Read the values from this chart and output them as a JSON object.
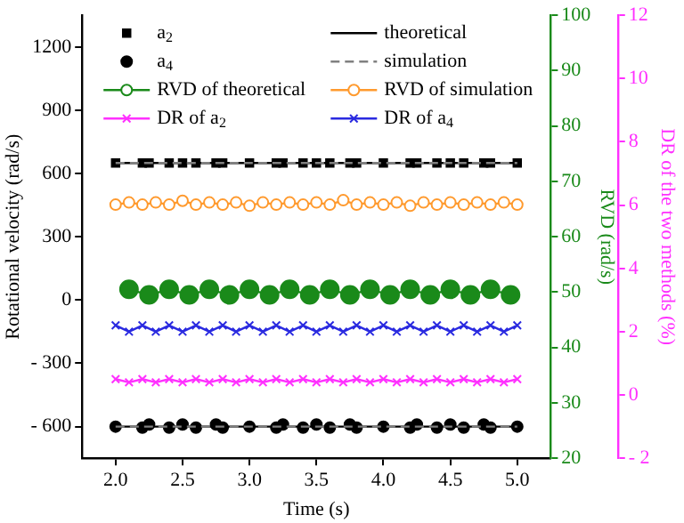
{
  "chart_data": {
    "type": "line",
    "xlabel": "Time (s)",
    "ylabel": "Rotational velocity (rad/s)",
    "y2label": "RVD (rad/s)",
    "y3label": "DR of the two methods (%)",
    "xlim": [
      1.75,
      5.25
    ],
    "xticks": [
      {
        "value": 2,
        "label": "2.0"
      },
      {
        "value": 2.5,
        "label": "2.5"
      },
      {
        "value": 3,
        "label": "3.0"
      },
      {
        "value": 3.5,
        "label": "3.5"
      },
      {
        "value": 4,
        "label": "4.0"
      },
      {
        "value": 4.5,
        "label": "4.5"
      },
      {
        "value": 5,
        "label": "5.0"
      }
    ],
    "ylim": [
      -750,
      1350
    ],
    "yticks": [
      {
        "value": -600,
        "label": "- 600"
      },
      {
        "value": -300,
        "label": "- 300"
      },
      0,
      300,
      600,
      900,
      1200
    ],
    "y2lim": [
      20,
      100
    ],
    "y2ticks": [
      20,
      30,
      40,
      50,
      60,
      70,
      80,
      90,
      100
    ],
    "y3lim": [
      -2,
      12
    ],
    "y3ticks": [
      {
        "value": -2,
        "label": "- 2"
      },
      0,
      2,
      4,
      6,
      8,
      10,
      12
    ],
    "grid": false,
    "legend": "top",
    "series": [
      {
        "name": "a$_{2}$",
        "type": "scatter",
        "marker": "square",
        "color": "#000000",
        "x": [
          2.0,
          2.2,
          2.25,
          2.4,
          2.5,
          2.6,
          2.75,
          2.8,
          3.0,
          3.2,
          3.25,
          3.4,
          3.5,
          3.6,
          3.75,
          3.8,
          4.0,
          4.2,
          4.25,
          4.4,
          4.5,
          4.6,
          4.75,
          4.8,
          5.0
        ],
        "values": [
          650,
          650,
          650,
          650,
          650,
          650,
          650,
          650,
          650,
          650,
          650,
          650,
          650,
          650,
          650,
          650,
          650,
          650,
          650,
          650,
          650,
          650,
          650,
          650,
          650
        ]
      },
      {
        "name": "theoretical",
        "line_style": "solid",
        "marker": "none",
        "color": "#000000",
        "x": [
          2.0,
          5.0
        ],
        "values": [
          650,
          650
        ]
      },
      {
        "name": "a$_{4}$",
        "type": "scatter",
        "marker": "circle",
        "color": "#000000",
        "x": [
          2.0,
          2.2,
          2.25,
          2.4,
          2.5,
          2.6,
          2.75,
          2.8,
          3.0,
          3.2,
          3.25,
          3.4,
          3.5,
          3.6,
          3.75,
          3.8,
          4.0,
          4.2,
          4.25,
          4.4,
          4.5,
          4.6,
          4.75,
          4.8,
          5.0
        ],
        "values": [
          -600,
          -605,
          -590,
          -605,
          -590,
          -605,
          -590,
          -605,
          -600,
          -605,
          -590,
          -605,
          -590,
          -605,
          -590,
          -605,
          -600,
          -605,
          -590,
          -605,
          -590,
          -605,
          -590,
          -605,
          -600
        ]
      },
      {
        "name": "simulation",
        "marker": "none",
        "line_style": "dashed",
        "color": "#808080",
        "x": [
          2.0,
          5.0
        ],
        "values": [
          650,
          650
        ]
      },
      {
        "name": "RVD of theoretical",
        "marker": "circle",
        "line_style": "solid",
        "color": "#1a8a1a",
        "axis": "y2",
        "x": [
          2.1,
          2.25,
          2.4,
          2.55,
          2.7,
          2.85,
          3.0,
          3.15,
          3.3,
          3.45,
          3.6,
          3.75,
          3.9,
          4.05,
          4.2,
          4.35,
          4.5,
          4.65,
          4.8,
          4.95
        ],
        "values": [
          50.5,
          49.5,
          50.5,
          49.5,
          50.5,
          49.5,
          50.5,
          49.5,
          50.5,
          49.5,
          50.5,
          49.5,
          50.5,
          49.5,
          50.5,
          49.5,
          50.5,
          49.5,
          50.5,
          49.5
        ]
      },
      {
        "name": "RVD of simulation",
        "marker": "circle",
        "line_style": "solid",
        "color": "#ff9a2e",
        "axis": "y2",
        "x": [
          2.0,
          2.1,
          2.2,
          2.3,
          2.4,
          2.5,
          2.6,
          2.7,
          2.8,
          2.9,
          3.0,
          3.1,
          3.2,
          3.3,
          3.4,
          3.5,
          3.6,
          3.7,
          3.8,
          3.9,
          4.0,
          4.1,
          4.2,
          4.3,
          4.4,
          4.5,
          4.6,
          4.7,
          4.8,
          4.9,
          5.0
        ],
        "values": [
          65.8,
          66.2,
          65.8,
          66.2,
          65.8,
          66.5,
          65.8,
          66.2,
          65.8,
          66.2,
          65.6,
          66.2,
          65.8,
          66.2,
          65.8,
          66.2,
          65.8,
          66.6,
          65.8,
          66.2,
          65.8,
          66.2,
          65.6,
          66.2,
          65.8,
          66.2,
          65.8,
          66.2,
          65.8,
          66.2,
          65.8
        ]
      },
      {
        "name": "DR of a$_{2}$",
        "marker": "cross",
        "line_style": "solid",
        "color": "#ff30ff",
        "axis": "y3",
        "x": [
          2.0,
          2.1,
          2.2,
          2.3,
          2.4,
          2.5,
          2.6,
          2.7,
          2.8,
          2.9,
          3.0,
          3.1,
          3.2,
          3.3,
          3.4,
          3.5,
          3.6,
          3.7,
          3.8,
          3.9,
          4.0,
          4.1,
          4.2,
          4.3,
          4.4,
          4.5,
          4.6,
          4.7,
          4.8,
          4.9,
          5.0
        ],
        "values": [
          0.5,
          0.4,
          0.5,
          0.4,
          0.5,
          0.4,
          0.5,
          0.4,
          0.5,
          0.4,
          0.5,
          0.4,
          0.5,
          0.4,
          0.5,
          0.4,
          0.5,
          0.4,
          0.5,
          0.4,
          0.5,
          0.4,
          0.5,
          0.4,
          0.5,
          0.4,
          0.5,
          0.4,
          0.5,
          0.4,
          0.5
        ]
      },
      {
        "name": "DR of a$_{4}$",
        "marker": "cross",
        "line_style": "solid",
        "color": "#2a2ae0",
        "axis": "y3",
        "x": [
          2.0,
          2.1,
          2.2,
          2.3,
          2.4,
          2.5,
          2.6,
          2.7,
          2.8,
          2.9,
          3.0,
          3.1,
          3.2,
          3.3,
          3.4,
          3.5,
          3.6,
          3.7,
          3.8,
          3.9,
          4.0,
          4.1,
          4.2,
          4.3,
          4.4,
          4.5,
          4.6,
          4.7,
          4.8,
          4.9,
          5.0
        ],
        "values": [
          2.2,
          2.0,
          2.2,
          2.0,
          2.2,
          2.0,
          2.2,
          2.0,
          2.2,
          2.0,
          2.2,
          2.0,
          2.2,
          2.0,
          2.2,
          2.0,
          2.2,
          2.0,
          2.2,
          2.0,
          2.2,
          2.0,
          2.2,
          2.0,
          2.2,
          2.0,
          2.2,
          2.0,
          2.2,
          2.0,
          2.2
        ]
      },
      {
        "line_style": "solid",
        "marker": "none",
        "color": "#000000",
        "x": [
          2.0,
          5.0
        ],
        "values": [
          -600,
          -600
        ]
      },
      {
        "line_style": "dashed",
        "marker": "none",
        "color": "#808080",
        "x": [
          2.0,
          5.0
        ],
        "values": [
          -600,
          -600
        ]
      }
    ]
  }
}
